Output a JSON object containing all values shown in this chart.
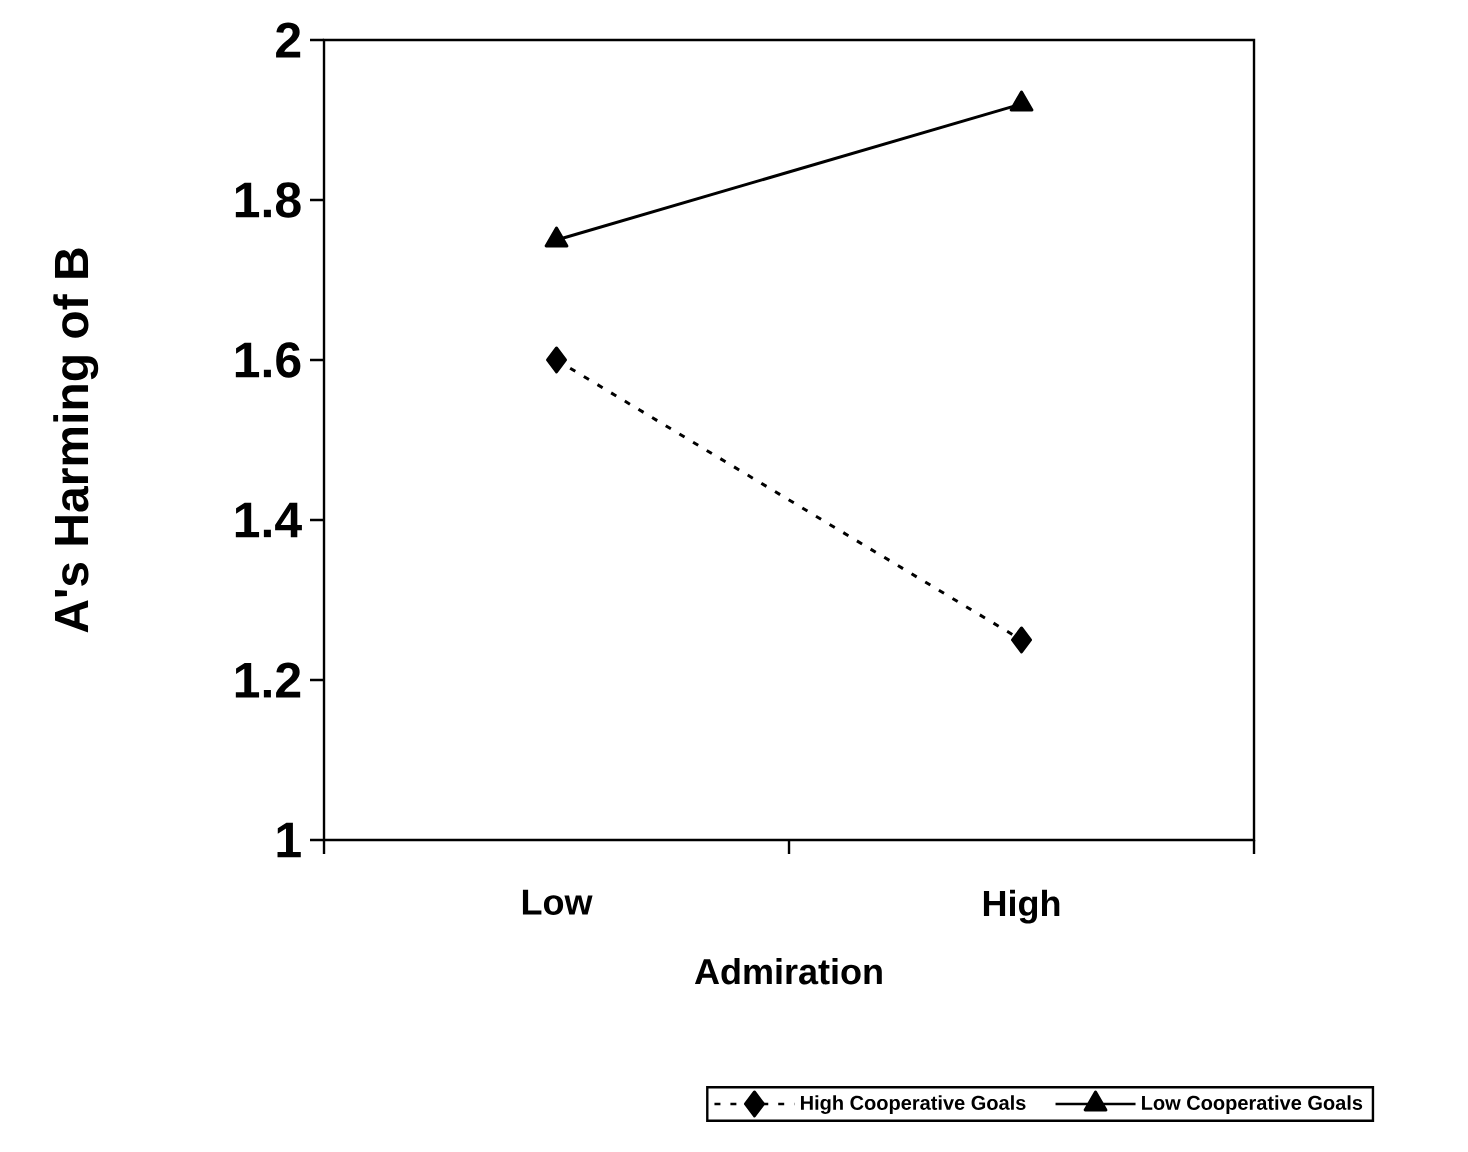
{
  "chart_data": {
    "type": "line",
    "xlabel": "Admiration",
    "ylabel": "A's Harming of B",
    "categories": [
      "Low",
      "High"
    ],
    "series": [
      {
        "name": "High Cooperative Goals",
        "color": "#000000",
        "values": [
          1.6,
          1.25
        ],
        "marker": "diamond",
        "line_style": "dashed"
      },
      {
        "name": "Low Cooperative Goals",
        "color": "#000000",
        "values": [
          1.75,
          1.92
        ],
        "marker": "triangle",
        "line_style": "solid"
      }
    ],
    "ylim": [
      1,
      2
    ],
    "yticks": [
      1,
      1.2,
      1.4,
      1.6,
      1.8,
      2
    ],
    "legend": "bottom"
  }
}
